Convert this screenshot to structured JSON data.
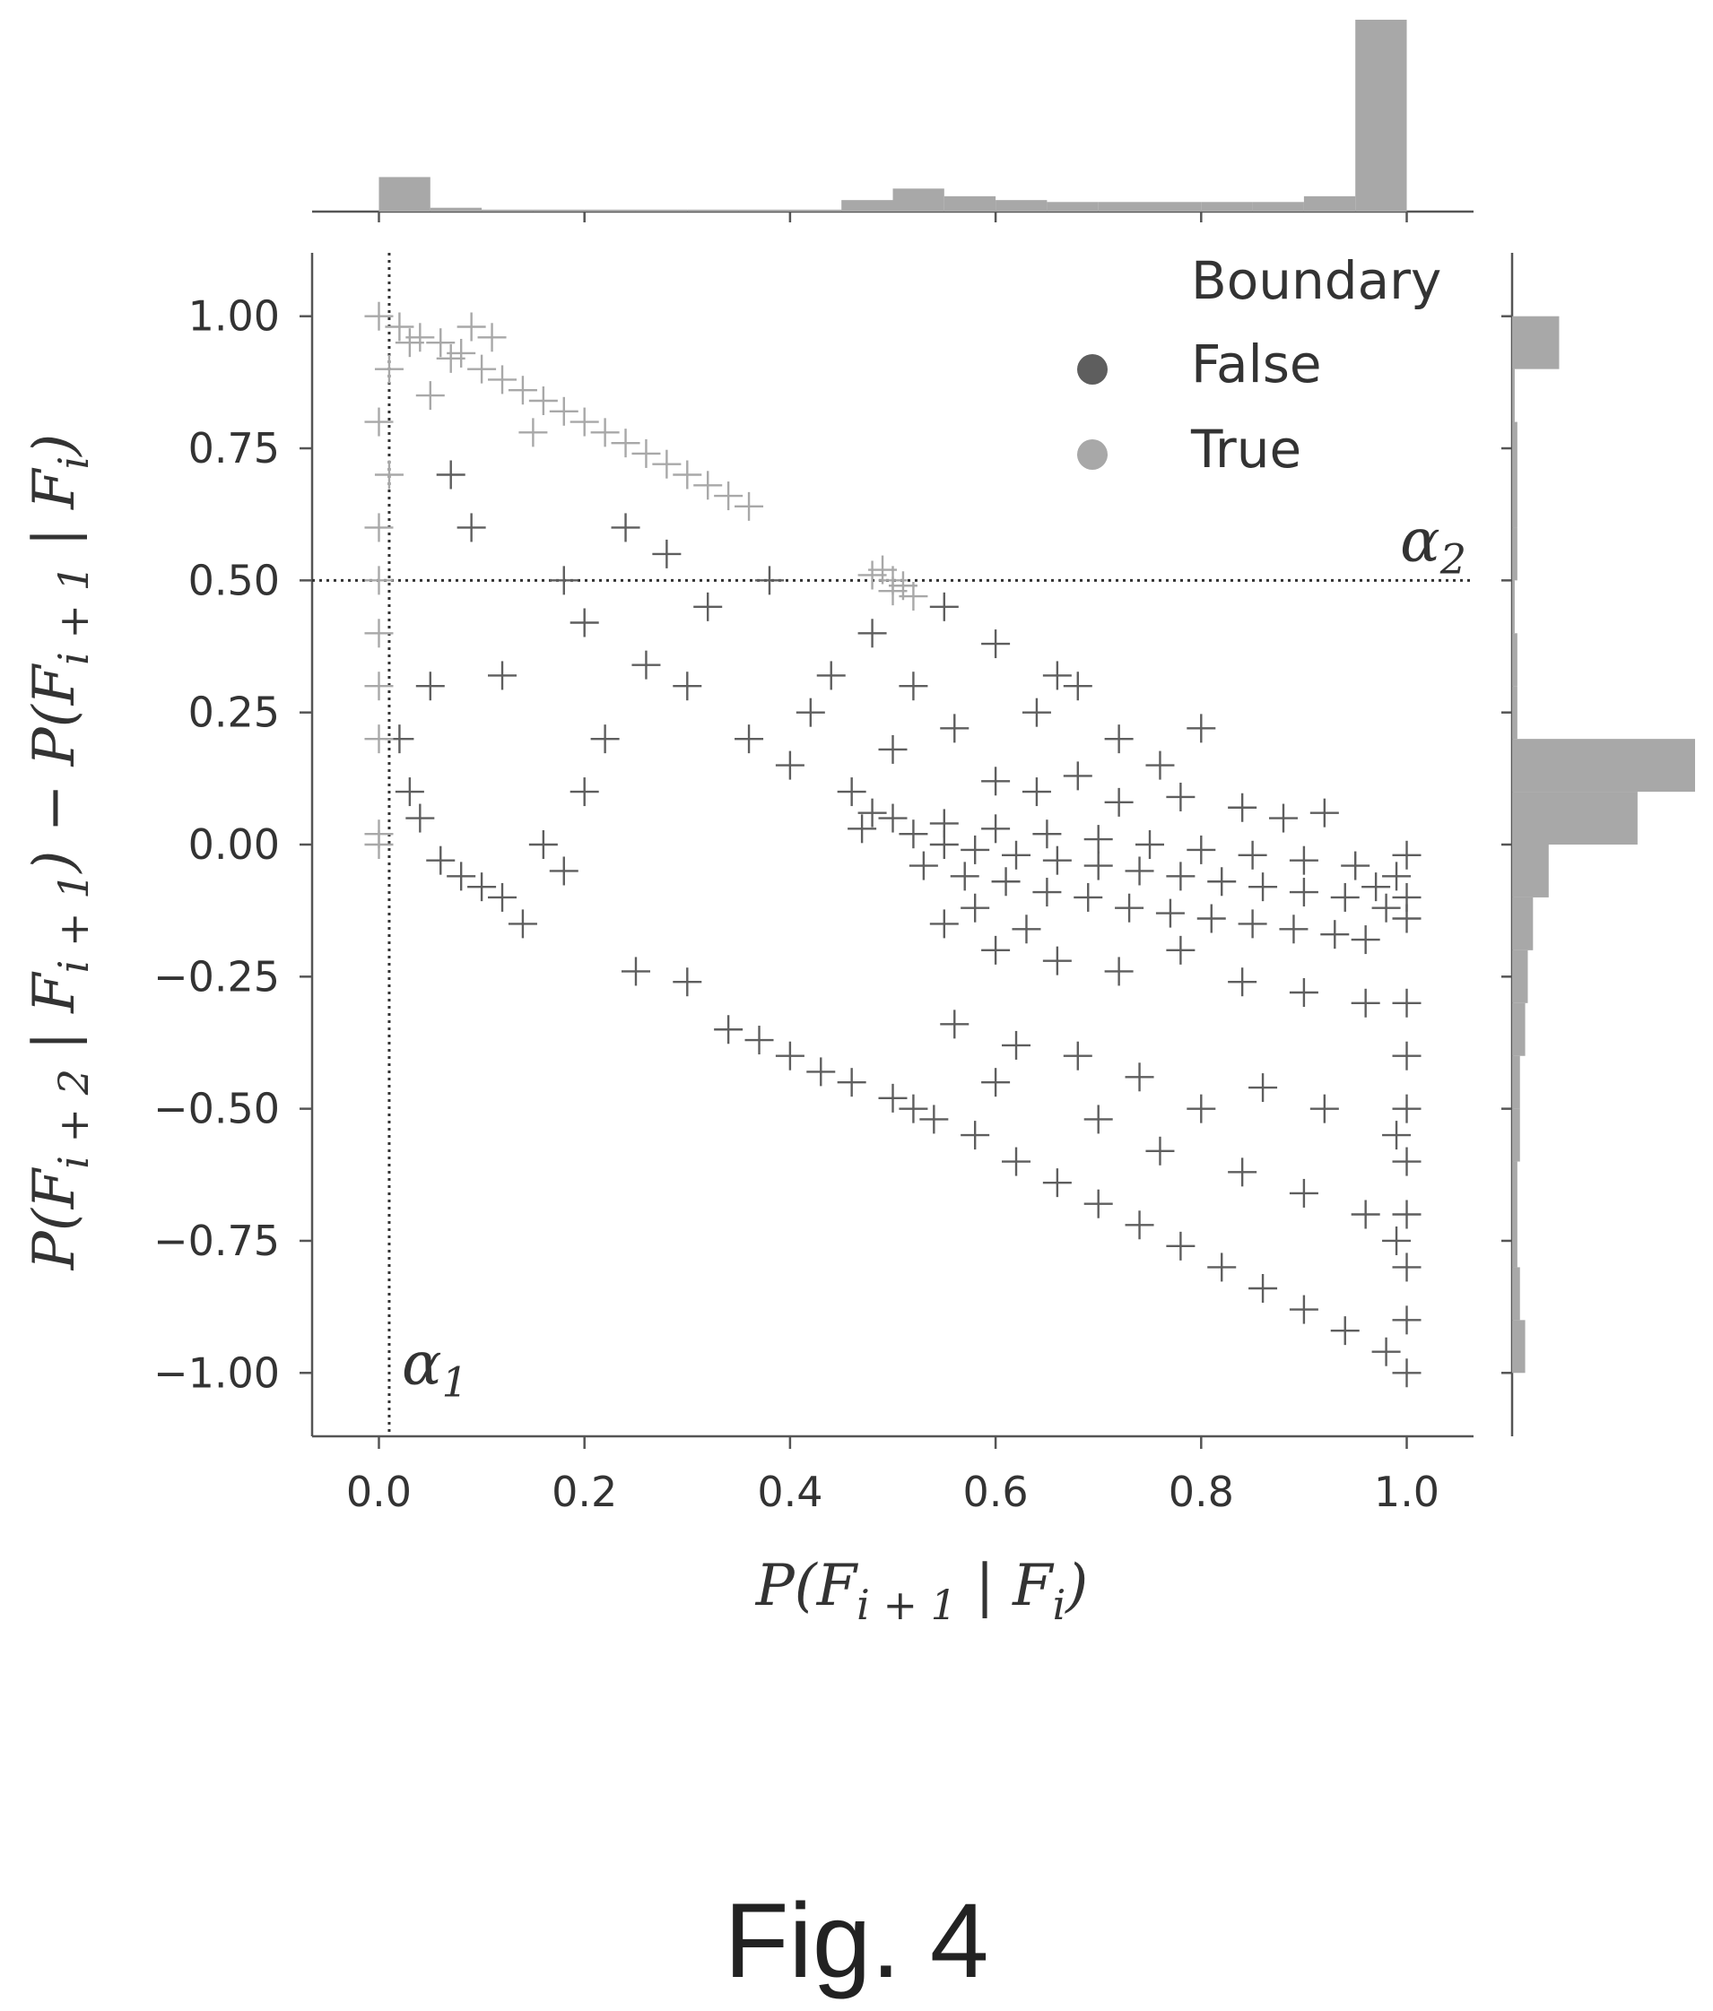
{
  "figure": {
    "caption": "Fig. 4"
  },
  "colors": {
    "false": "#5e5e5e",
    "true": "#a8a8a8",
    "axis": "#555555",
    "text": "#333333"
  },
  "chart_data": {
    "type": "scatter",
    "title": "",
    "xlabel": "P(F_{i+1} | F_i)",
    "ylabel": "P(F_{i+2} | F_{i+1}) − P(F_{i+1} | F_i)",
    "xlim": [
      -0.065,
      1.065
    ],
    "ylim": [
      -1.12,
      1.12
    ],
    "xticks": [
      "0.0",
      "0.2",
      "0.4",
      "0.6",
      "0.8",
      "1.0"
    ],
    "xtick_values": [
      0.0,
      0.2,
      0.4,
      0.6,
      0.8,
      1.0
    ],
    "yticks": [
      "1.00",
      "0.75",
      "0.50",
      "0.25",
      "0.00",
      "−0.25",
      "−0.50",
      "−0.75",
      "−1.00"
    ],
    "ytick_values": [
      1.0,
      0.75,
      0.5,
      0.25,
      0.0,
      -0.25,
      -0.5,
      -0.75,
      -1.0
    ],
    "grid": false,
    "legend": {
      "title": "Boundary",
      "position": "top-right",
      "entries": [
        {
          "label": "False",
          "series": "false"
        },
        {
          "label": "True",
          "series": "true"
        }
      ]
    },
    "thresholds": [
      {
        "label": "α",
        "subscript": "1",
        "orientation": "vertical",
        "value": 0.01
      },
      {
        "label": "α",
        "subscript": "2",
        "orientation": "horizontal",
        "value": 0.5
      }
    ],
    "series": [
      {
        "key": "false",
        "name": "False",
        "marker": "+",
        "points": [
          [
            0.5,
            0.05
          ],
          [
            0.48,
            0.06
          ],
          [
            0.47,
            0.03
          ],
          [
            0.52,
            0.02
          ],
          [
            0.55,
            0.0
          ],
          [
            0.58,
            -0.01
          ],
          [
            0.62,
            -0.02
          ],
          [
            0.66,
            -0.03
          ],
          [
            0.7,
            -0.04
          ],
          [
            0.74,
            -0.05
          ],
          [
            0.78,
            -0.06
          ],
          [
            0.82,
            -0.07
          ],
          [
            0.86,
            -0.08
          ],
          [
            0.9,
            -0.09
          ],
          [
            0.94,
            -0.1
          ],
          [
            0.97,
            -0.08
          ],
          [
            0.99,
            -0.06
          ],
          [
            1.0,
            -0.1
          ],
          [
            1.0,
            -0.14
          ],
          [
            0.98,
            -0.12
          ],
          [
            0.53,
            -0.04
          ],
          [
            0.57,
            -0.06
          ],
          [
            0.61,
            -0.07
          ],
          [
            0.65,
            -0.09
          ],
          [
            0.69,
            -0.1
          ],
          [
            0.73,
            -0.12
          ],
          [
            0.77,
            -0.13
          ],
          [
            0.81,
            -0.14
          ],
          [
            0.85,
            -0.15
          ],
          [
            0.89,
            -0.16
          ],
          [
            0.93,
            -0.17
          ],
          [
            0.96,
            -0.18
          ],
          [
            0.55,
            0.04
          ],
          [
            0.6,
            0.03
          ],
          [
            0.65,
            0.02
          ],
          [
            0.7,
            0.01
          ],
          [
            0.75,
            0.0
          ],
          [
            0.8,
            -0.01
          ],
          [
            0.85,
            -0.02
          ],
          [
            0.9,
            -0.03
          ],
          [
            0.95,
            -0.04
          ],
          [
            1.0,
            -0.02
          ],
          [
            0.6,
            0.12
          ],
          [
            0.64,
            0.1
          ],
          [
            0.68,
            0.13
          ],
          [
            0.72,
            0.08
          ],
          [
            0.78,
            0.09
          ],
          [
            0.84,
            0.07
          ],
          [
            0.88,
            0.05
          ],
          [
            0.92,
            0.06
          ],
          [
            0.66,
            0.32
          ],
          [
            0.68,
            0.3
          ],
          [
            0.64,
            0.25
          ],
          [
            0.72,
            0.2
          ],
          [
            0.8,
            0.22
          ],
          [
            0.76,
            0.15
          ],
          [
            0.6,
            -0.2
          ],
          [
            0.66,
            -0.22
          ],
          [
            0.72,
            -0.24
          ],
          [
            0.78,
            -0.2
          ],
          [
            0.84,
            -0.26
          ],
          [
            0.9,
            -0.28
          ],
          [
            0.96,
            -0.3
          ],
          [
            0.55,
            -0.15
          ],
          [
            0.58,
            -0.12
          ],
          [
            0.63,
            -0.16
          ],
          [
            0.34,
            -0.35
          ],
          [
            0.4,
            -0.4
          ],
          [
            0.46,
            -0.45
          ],
          [
            0.5,
            -0.48
          ],
          [
            0.54,
            -0.52
          ],
          [
            0.58,
            -0.55
          ],
          [
            0.62,
            -0.6
          ],
          [
            0.66,
            -0.64
          ],
          [
            0.7,
            -0.68
          ],
          [
            0.74,
            -0.72
          ],
          [
            0.78,
            -0.76
          ],
          [
            0.82,
            -0.8
          ],
          [
            0.86,
            -0.84
          ],
          [
            0.9,
            -0.88
          ],
          [
            0.94,
            -0.92
          ],
          [
            0.98,
            -0.96
          ],
          [
            1.0,
            -1.0
          ],
          [
            0.37,
            -0.37
          ],
          [
            0.43,
            -0.43
          ],
          [
            0.52,
            -0.5
          ],
          [
            0.56,
            -0.34
          ],
          [
            0.62,
            -0.38
          ],
          [
            0.68,
            -0.4
          ],
          [
            0.74,
            -0.44
          ],
          [
            0.8,
            -0.5
          ],
          [
            0.86,
            -0.46
          ],
          [
            0.92,
            -0.5
          ],
          [
            0.6,
            -0.45
          ],
          [
            0.7,
            -0.52
          ],
          [
            0.76,
            -0.58
          ],
          [
            0.84,
            -0.62
          ],
          [
            0.9,
            -0.66
          ],
          [
            0.96,
            -0.7
          ],
          [
            1.0,
            -0.3
          ],
          [
            1.0,
            -0.4
          ],
          [
            1.0,
            -0.5
          ],
          [
            1.0,
            -0.6
          ],
          [
            1.0,
            -0.7
          ],
          [
            1.0,
            -0.8
          ],
          [
            1.0,
            -0.9
          ],
          [
            0.99,
            -0.55
          ],
          [
            0.99,
            -0.75
          ],
          [
            0.36,
            0.2
          ],
          [
            0.4,
            0.15
          ],
          [
            0.42,
            0.25
          ],
          [
            0.46,
            0.1
          ],
          [
            0.5,
            0.18
          ],
          [
            0.52,
            0.3
          ],
          [
            0.56,
            0.22
          ],
          [
            0.44,
            0.32
          ],
          [
            0.48,
            0.4
          ],
          [
            0.3,
            0.3
          ],
          [
            0.26,
            0.34
          ],
          [
            0.22,
            0.2
          ],
          [
            0.2,
            0.1
          ],
          [
            0.16,
            0.0
          ],
          [
            0.12,
            -0.1
          ],
          [
            0.14,
            -0.15
          ],
          [
            0.18,
            -0.05
          ],
          [
            0.25,
            -0.24
          ],
          [
            0.3,
            -0.26
          ],
          [
            0.2,
            0.42
          ],
          [
            0.24,
            0.6
          ],
          [
            0.18,
            0.5
          ],
          [
            0.28,
            0.55
          ],
          [
            0.32,
            0.45
          ],
          [
            0.38,
            0.5
          ],
          [
            0.55,
            0.45
          ],
          [
            0.6,
            0.38
          ],
          [
            0.04,
            0.05
          ],
          [
            0.06,
            -0.03
          ],
          [
            0.08,
            -0.06
          ],
          [
            0.1,
            -0.08
          ],
          [
            0.03,
            0.1
          ],
          [
            0.05,
            0.3
          ],
          [
            0.02,
            0.2
          ],
          [
            0.07,
            0.7
          ],
          [
            0.09,
            0.6
          ],
          [
            0.12,
            0.32
          ]
        ]
      },
      {
        "key": "true",
        "name": "True",
        "marker": "+",
        "points": [
          [
            0.0,
            1.0
          ],
          [
            0.02,
            0.98
          ],
          [
            0.04,
            0.96
          ],
          [
            0.06,
            0.95
          ],
          [
            0.08,
            0.93
          ],
          [
            0.1,
            0.9
          ],
          [
            0.12,
            0.88
          ],
          [
            0.14,
            0.86
          ],
          [
            0.16,
            0.84
          ],
          [
            0.18,
            0.82
          ],
          [
            0.2,
            0.8
          ],
          [
            0.22,
            0.78
          ],
          [
            0.24,
            0.76
          ],
          [
            0.26,
            0.74
          ],
          [
            0.28,
            0.72
          ],
          [
            0.3,
            0.7
          ],
          [
            0.32,
            0.68
          ],
          [
            0.34,
            0.66
          ],
          [
            0.36,
            0.64
          ],
          [
            0.5,
            0.5
          ],
          [
            0.49,
            0.52
          ],
          [
            0.51,
            0.49
          ],
          [
            0.48,
            0.51
          ],
          [
            0.5,
            0.48
          ],
          [
            0.52,
            0.47
          ],
          [
            0.0,
            0.8
          ],
          [
            0.0,
            0.6
          ],
          [
            0.0,
            0.5
          ],
          [
            0.0,
            0.4
          ],
          [
            0.0,
            0.3
          ],
          [
            0.0,
            0.2
          ],
          [
            0.0,
            0.02
          ],
          [
            0.0,
            0.0
          ],
          [
            0.01,
            0.9
          ],
          [
            0.01,
            0.7
          ],
          [
            0.05,
            0.85
          ],
          [
            0.07,
            0.92
          ],
          [
            0.03,
            0.95
          ],
          [
            0.09,
            0.98
          ],
          [
            0.11,
            0.96
          ],
          [
            0.15,
            0.78
          ]
        ]
      }
    ],
    "marginal_x": {
      "bins": [
        0.0,
        0.05,
        0.1,
        0.15,
        0.2,
        0.25,
        0.3,
        0.35,
        0.4,
        0.45,
        0.5,
        0.55,
        0.6,
        0.65,
        0.7,
        0.75,
        0.8,
        0.85,
        0.9,
        0.95,
        1.0
      ],
      "counts": [
        18,
        2,
        1,
        1,
        1,
        1,
        1,
        1,
        1,
        6,
        12,
        8,
        6,
        5,
        5,
        5,
        5,
        5,
        8,
        100
      ]
    },
    "marginal_y": {
      "bins": [
        -1.0,
        -0.9,
        -0.8,
        -0.7,
        -0.6,
        -0.5,
        -0.4,
        -0.3,
        -0.2,
        -0.1,
        0.0,
        0.1,
        0.2,
        0.3,
        0.4,
        0.5,
        0.6,
        0.7,
        0.8,
        0.9,
        1.0
      ],
      "counts": [
        5,
        3,
        2,
        2,
        3,
        3,
        5,
        6,
        8,
        14,
        48,
        70,
        2,
        2,
        1,
        2,
        2,
        2,
        1,
        18
      ]
    }
  }
}
